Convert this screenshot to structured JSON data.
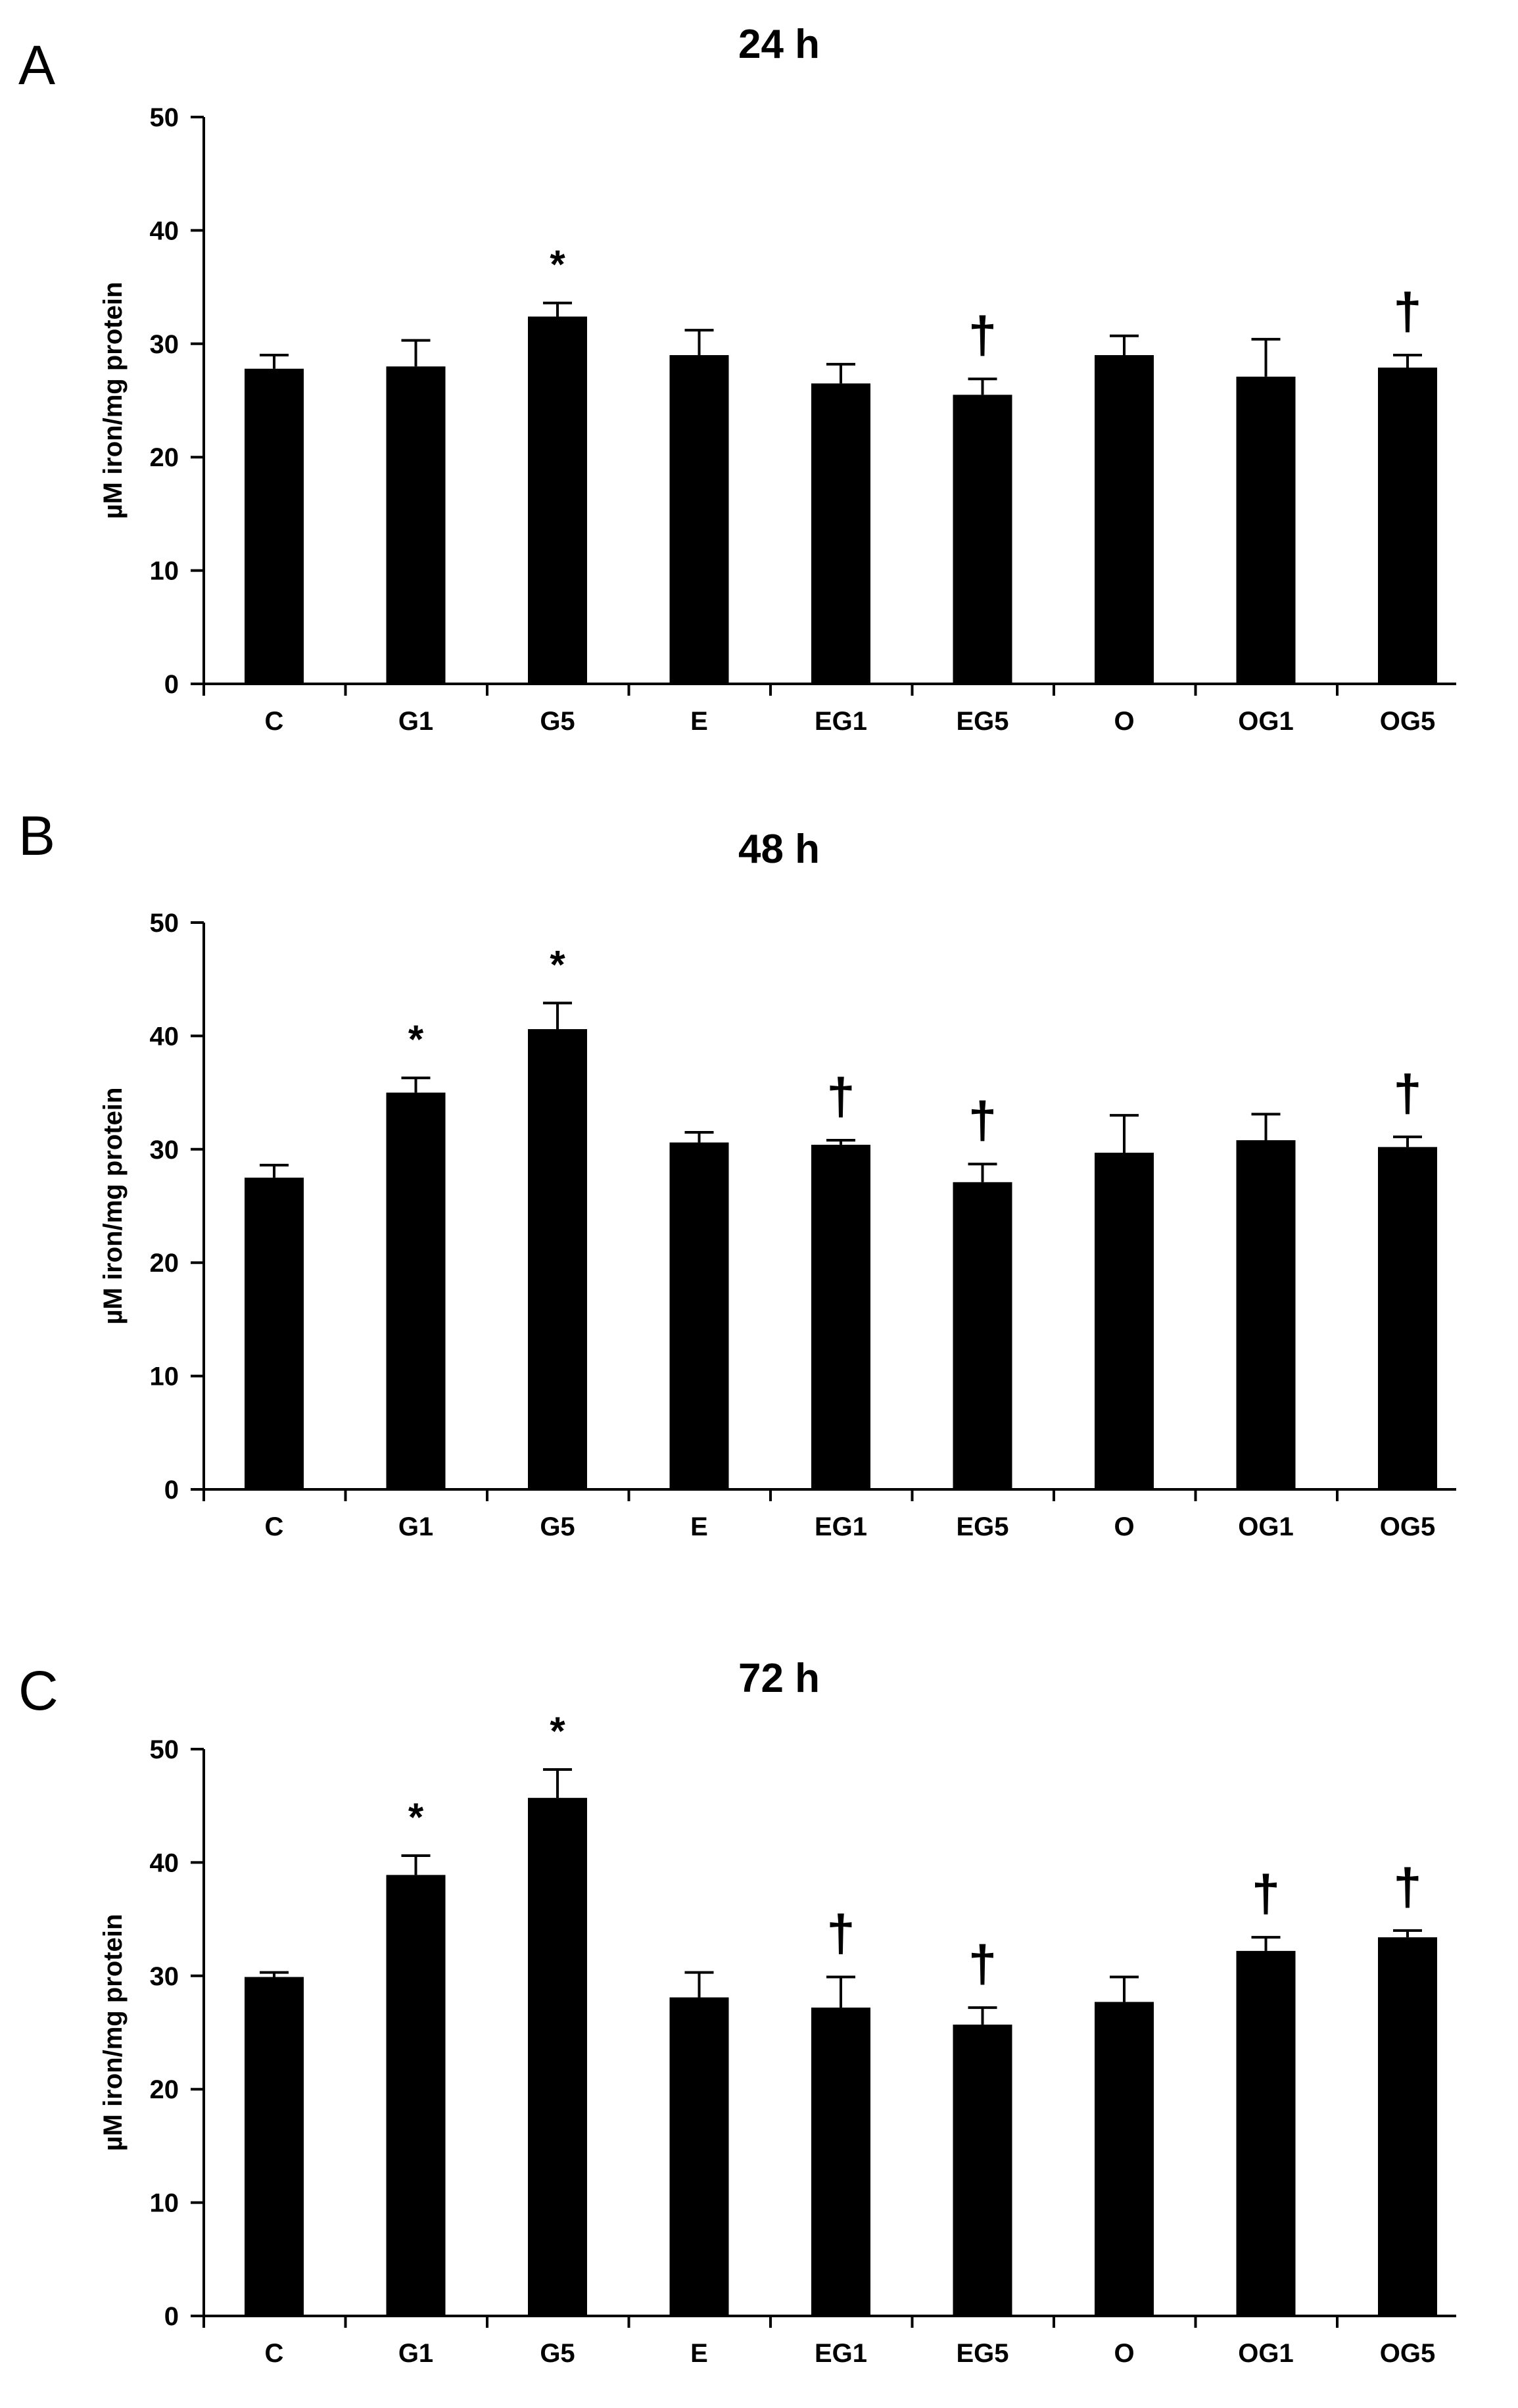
{
  "chart_data": [
    {
      "type": "bar",
      "panel_label": "A",
      "title": "24 h",
      "ylabel": "µM iron/mg protein",
      "xlabel": "",
      "ylim": [
        0,
        50
      ],
      "yticks": [
        0,
        10,
        20,
        30,
        40,
        50
      ],
      "categories": [
        "C",
        "G1",
        "G5",
        "E",
        "EG1",
        "EG5",
        "O",
        "OG1",
        "OG5"
      ],
      "values": [
        27.8,
        28.0,
        32.4,
        29.0,
        26.5,
        25.5,
        29.0,
        27.1,
        27.9
      ],
      "errors": [
        1.2,
        2.3,
        1.2,
        2.2,
        1.7,
        1.4,
        1.7,
        3.3,
        1.1
      ],
      "markers": [
        "",
        "",
        "*",
        "",
        "",
        "†",
        "",
        "",
        "†"
      ],
      "grid": false,
      "bar_color": "#000000"
    },
    {
      "type": "bar",
      "panel_label": "B",
      "title": "48 h",
      "ylabel": "µM iron/mg protein",
      "xlabel": "",
      "ylim": [
        0,
        50
      ],
      "yticks": [
        0,
        10,
        20,
        30,
        40,
        50
      ],
      "categories": [
        "C",
        "G1",
        "G5",
        "E",
        "EG1",
        "EG5",
        "O",
        "OG1",
        "OG5"
      ],
      "values": [
        27.5,
        35.0,
        40.6,
        30.6,
        30.4,
        27.1,
        29.7,
        30.8,
        30.2
      ],
      "errors": [
        1.1,
        1.3,
        2.3,
        0.9,
        0.4,
        1.6,
        3.3,
        2.3,
        0.9
      ],
      "markers": [
        "",
        "*",
        "*",
        "",
        "†",
        "†",
        "",
        "",
        "†"
      ],
      "grid": false,
      "bar_color": "#000000"
    },
    {
      "type": "bar",
      "panel_label": "C",
      "title": "72 h",
      "ylabel": "µM iron/mg protein",
      "xlabel": "",
      "ylim": [
        0,
        50
      ],
      "yticks": [
        0,
        10,
        20,
        30,
        40,
        50
      ],
      "categories": [
        "C",
        "G1",
        "G5",
        "E",
        "EG1",
        "EG5",
        "O",
        "OG1",
        "OG5"
      ],
      "values": [
        29.9,
        38.9,
        45.7,
        28.1,
        27.2,
        25.7,
        27.7,
        32.2,
        33.4
      ],
      "errors": [
        0.4,
        1.7,
        2.5,
        2.2,
        2.7,
        1.5,
        2.2,
        1.2,
        0.6
      ],
      "markers": [
        "",
        "*",
        "*",
        "",
        "†",
        "†",
        "",
        "†",
        "†"
      ],
      "grid": false,
      "bar_color": "#000000"
    }
  ]
}
